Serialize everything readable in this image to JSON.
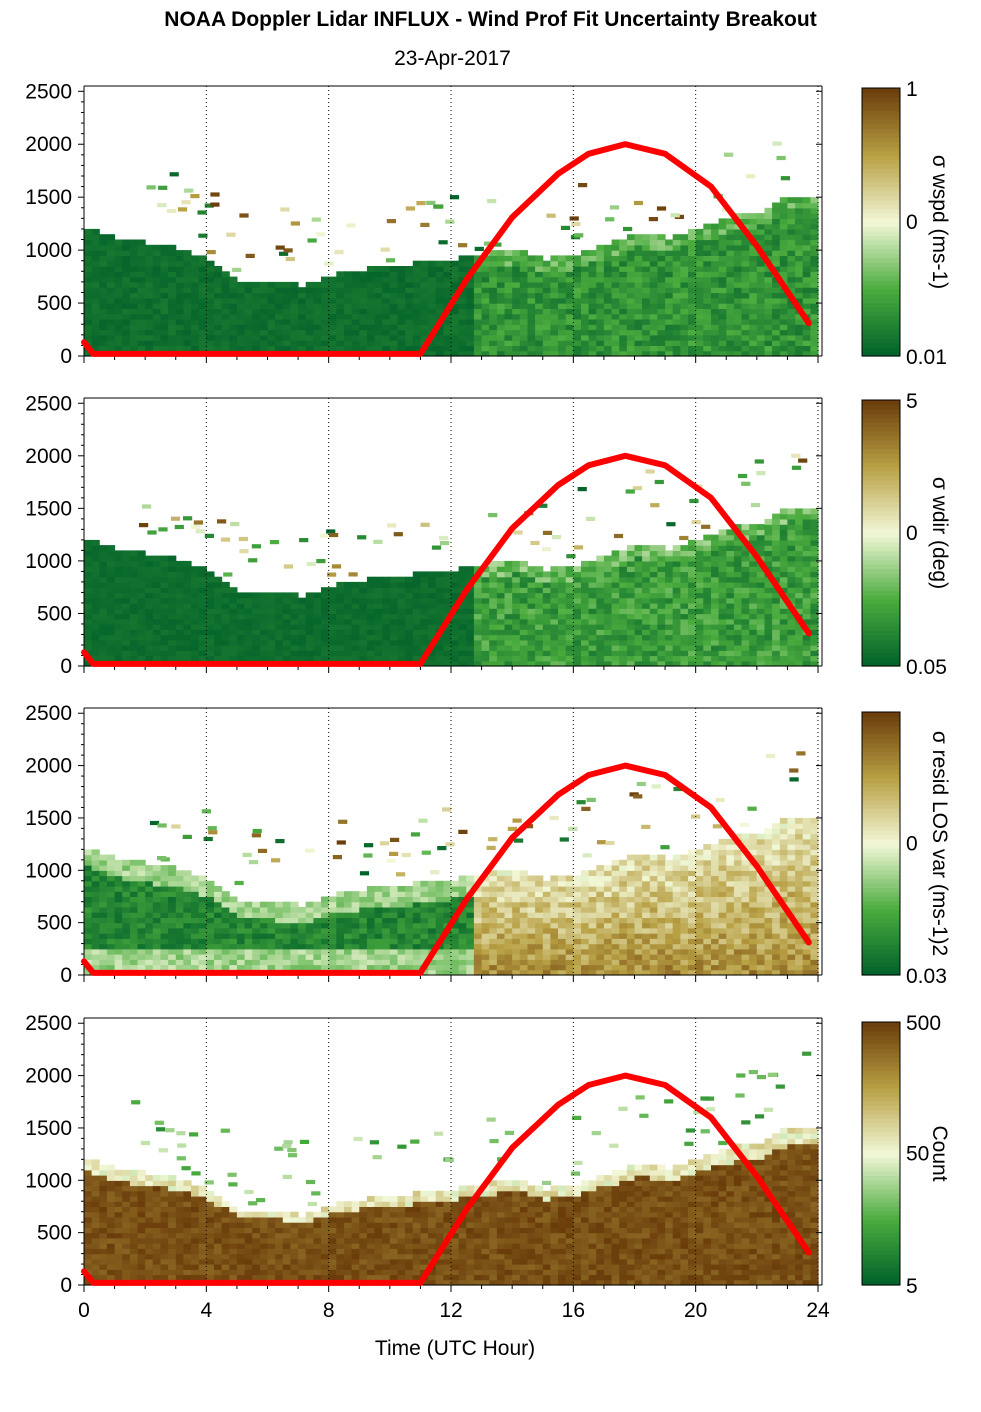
{
  "title": "NOAA Doppler Lidar INFLUX - Wind Prof Fit Uncertainty Breakout",
  "subtitle": "23-Apr-2017",
  "colors": {
    "dark_green": "#00602a",
    "mid_green": "#4aab3e",
    "pale": "#f3f8d8",
    "tan": "#b8a044",
    "dark_brown": "#6a3c0a",
    "sun_line": "#ff0000"
  },
  "chart_data": [
    {
      "type": "heatmap",
      "panel": "wind speed uncertainty",
      "colorbar_label": "σ wspd (ms-1)",
      "colorbar_ticks": [
        "1",
        "0",
        "0.01"
      ],
      "ylim": [
        0,
        2550
      ],
      "ytick_labels": [
        "0",
        "500",
        "1000",
        "1500",
        "2000",
        "2500"
      ],
      "xlim": [
        0,
        24
      ],
      "xtick_labels": [
        "0",
        "4",
        "8",
        "12",
        "16",
        "20",
        "24"
      ],
      "grid": "vertical dotted at 4, 8, 12, 16, 20, 24"
    },
    {
      "type": "heatmap",
      "panel": "wind direction uncertainty",
      "colorbar_label": "σ wdir (deg)",
      "colorbar_ticks": [
        "5",
        "0",
        "0.05"
      ],
      "ylim": [
        0,
        2550
      ],
      "ytick_labels": [
        "0",
        "500",
        "1000",
        "1500",
        "2000",
        "2500"
      ],
      "xlim": [
        0,
        24
      ],
      "xtick_labels": [
        "0",
        "4",
        "8",
        "12",
        "16",
        "20",
        "24"
      ],
      "grid": "vertical dotted at 4, 8, 12, 16, 20, 24"
    },
    {
      "type": "heatmap",
      "panel": "residual LOS variance",
      "colorbar_label": "σ resid LOS var (ms-1)2",
      "colorbar_ticks": [
        "",
        "0",
        "0.03"
      ],
      "ylim": [
        0,
        2550
      ],
      "ytick_labels": [
        "0",
        "500",
        "1000",
        "1500",
        "2000",
        "2500"
      ],
      "xlim": [
        0,
        24
      ],
      "xtick_labels": [
        "0",
        "4",
        "8",
        "12",
        "16",
        "20",
        "24"
      ],
      "grid": "vertical dotted at 4, 8, 12, 16, 20, 24"
    },
    {
      "type": "heatmap",
      "panel": "count",
      "colorbar_label": "Count",
      "colorbar_ticks": [
        "500",
        "50",
        "5"
      ],
      "ylim": [
        0,
        2550
      ],
      "ytick_labels": [
        "0",
        "500",
        "1000",
        "1500",
        "2000",
        "2500"
      ],
      "xlim": [
        0,
        24
      ],
      "xtick_labels": [
        "0",
        "4",
        "8",
        "12",
        "16",
        "20",
        "24"
      ],
      "xlabel": "Time (UTC Hour)",
      "grid": "vertical dotted at 4, 8, 12, 16, 20, 24"
    }
  ],
  "sun_curve": {
    "description": "red solar-elevation overlay",
    "x": [
      0,
      0.3,
      11.0,
      12.5,
      14.0,
      15.5,
      16.5,
      17.7,
      19.0,
      20.5,
      22.0,
      23.7
    ],
    "y": [
      130,
      20,
      20,
      720,
      1310,
      1720,
      1910,
      2000,
      1910,
      1600,
      1040,
      310
    ]
  },
  "profile_top": {
    "description": "approximate top of valid data (m) vs hour",
    "x": [
      0,
      1,
      2,
      3,
      4,
      5,
      6,
      7,
      8,
      9,
      10,
      11,
      12,
      13,
      14,
      15,
      16,
      17,
      18,
      19,
      20,
      21,
      22,
      23,
      23.8
    ],
    "y": [
      1200,
      1100,
      1050,
      1000,
      900,
      700,
      700,
      650,
      750,
      800,
      830,
      860,
      900,
      950,
      1000,
      900,
      950,
      1050,
      1150,
      1100,
      1200,
      1300,
      1350,
      1500,
      1500
    ]
  }
}
